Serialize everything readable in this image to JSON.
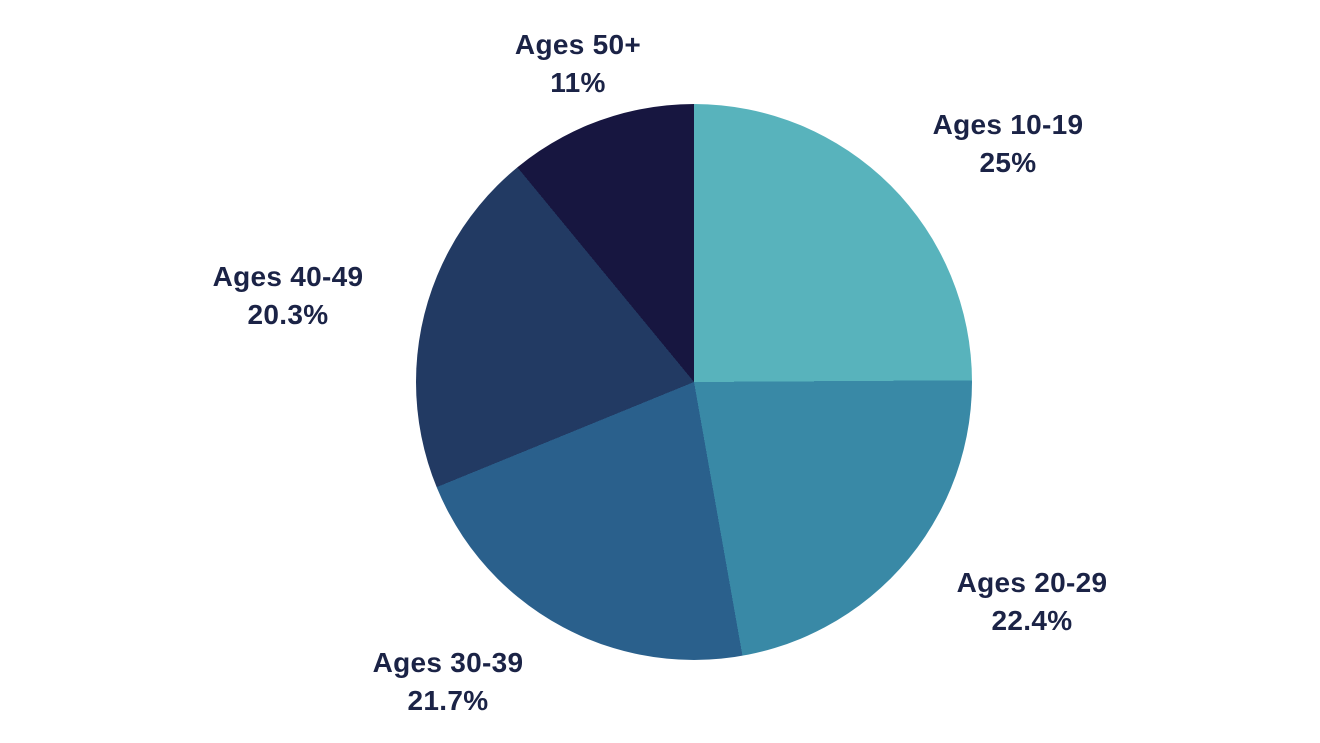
{
  "chart_data": {
    "type": "pie",
    "categories": [
      "Ages 10-19",
      "Ages 20-29",
      "Ages 30-39",
      "Ages 40-49",
      "Ages 50+"
    ],
    "values": [
      25,
      22.4,
      21.7,
      20.3,
      11
    ],
    "labels": [
      "25%",
      "22.4%",
      "21.7%",
      "20.3%",
      "11%"
    ],
    "colors": [
      "#58b3bc",
      "#3989a6",
      "#2a608c",
      "#223a63",
      "#171640"
    ],
    "start_angle_deg": 0,
    "direction": "clockwise",
    "legend_position": "labels-outside-slices",
    "text_color": "#1b2346",
    "background_color": "#ffffff",
    "title": "",
    "xlabel": "",
    "ylabel": ""
  }
}
